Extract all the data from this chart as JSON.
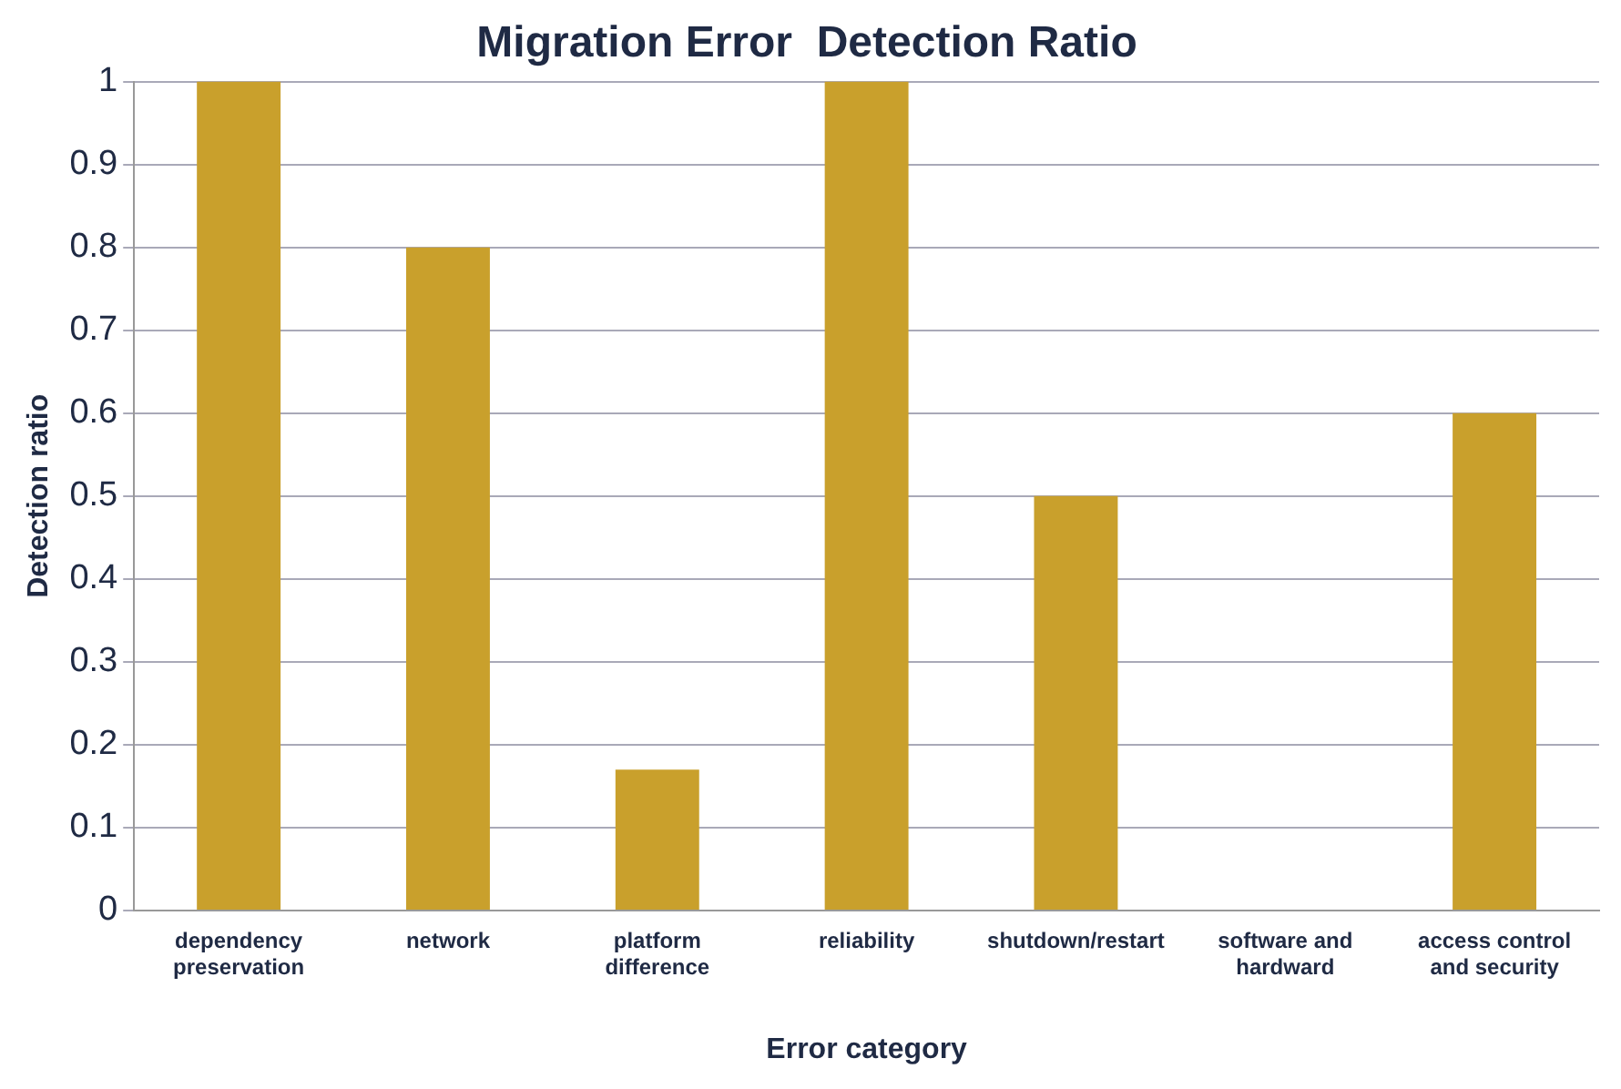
{
  "chart_data": {
    "type": "bar",
    "title": "Migration Error  Detection Ratio",
    "xlabel": "Error category",
    "ylabel": "Detection ratio",
    "categories": [
      "dependency preservation",
      "network",
      "platform difference",
      "reliability",
      "shutdown/restart",
      "software and hardward",
      "access control and security"
    ],
    "values": [
      1,
      0.8,
      0.17,
      1,
      0.5,
      0,
      0.6
    ],
    "color": "#c9a02c",
    "ylim": [
      0,
      1
    ],
    "yticks": [
      0,
      0.1,
      0.2,
      0.3,
      0.4,
      0.5,
      0.6,
      0.7,
      0.8,
      0.9,
      1
    ],
    "grid": "y",
    "legend": false
  }
}
